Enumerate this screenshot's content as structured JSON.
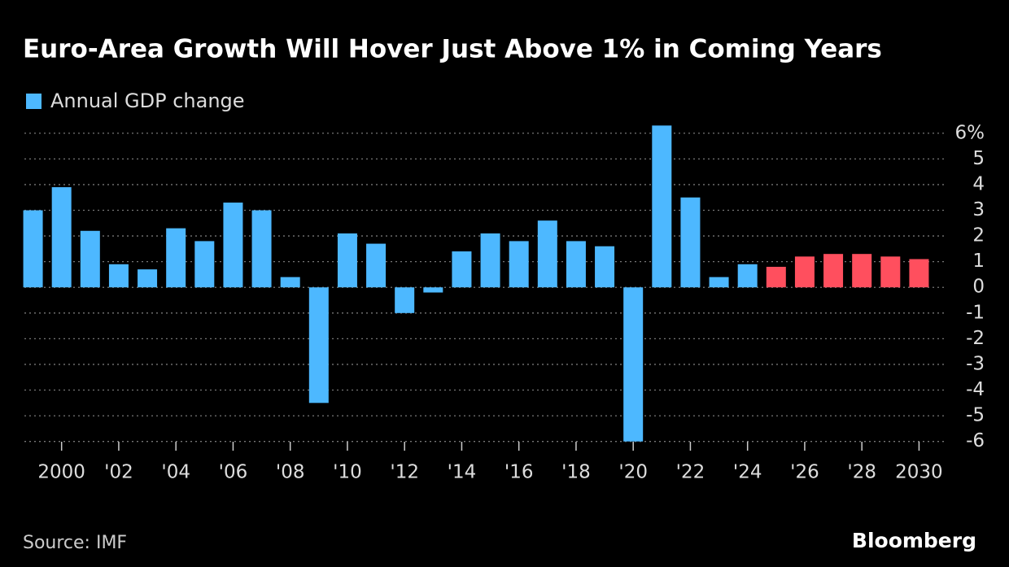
{
  "chart_data": {
    "type": "bar",
    "title": "Euro-Area Growth Will Hover Just Above 1% in Coming Years",
    "source": "Source: IMF",
    "brand": "Bloomberg",
    "series": [
      {
        "name": "Annual GDP change",
        "color": "#4db8ff",
        "values": [
          3.0,
          3.9,
          2.2,
          0.9,
          0.7,
          2.3,
          1.8,
          3.3,
          3.0,
          0.4,
          -4.5,
          2.1,
          1.7,
          -1.0,
          -0.2,
          1.4,
          2.1,
          1.8,
          2.6,
          1.8,
          1.6,
          -6.0,
          6.3,
          3.5,
          0.4,
          0.9,
          0.8,
          1.2,
          1.3,
          1.3,
          1.2,
          1.1
        ],
        "colors": [
          "#4db8ff",
          "#4db8ff",
          "#4db8ff",
          "#4db8ff",
          "#4db8ff",
          "#4db8ff",
          "#4db8ff",
          "#4db8ff",
          "#4db8ff",
          "#4db8ff",
          "#4db8ff",
          "#4db8ff",
          "#4db8ff",
          "#4db8ff",
          "#4db8ff",
          "#4db8ff",
          "#4db8ff",
          "#4db8ff",
          "#4db8ff",
          "#4db8ff",
          "#4db8ff",
          "#4db8ff",
          "#4db8ff",
          "#4db8ff",
          "#4db8ff",
          "#4db8ff",
          "#ff4f5e",
          "#ff4f5e",
          "#ff4f5e",
          "#ff4f5e",
          "#ff4f5e",
          "#ff4f5e"
        ]
      }
    ],
    "categories": [
      null,
      "2000",
      null,
      "'02",
      null,
      "'04",
      null,
      "'06",
      null,
      "'08",
      null,
      "'10",
      null,
      "'12",
      null,
      "'14",
      null,
      "'16",
      null,
      "'18",
      null,
      "'20",
      null,
      "'22",
      null,
      "'24",
      null,
      "'26",
      null,
      "'28",
      null,
      "2030"
    ],
    "ylim": [
      -6.2,
      6.5
    ],
    "yticks": [
      {
        "value": 6,
        "label": "6%"
      },
      5,
      4,
      3,
      2,
      1,
      0,
      -1,
      -2,
      -3,
      -4,
      -5,
      -6
    ],
    "grid": true
  }
}
